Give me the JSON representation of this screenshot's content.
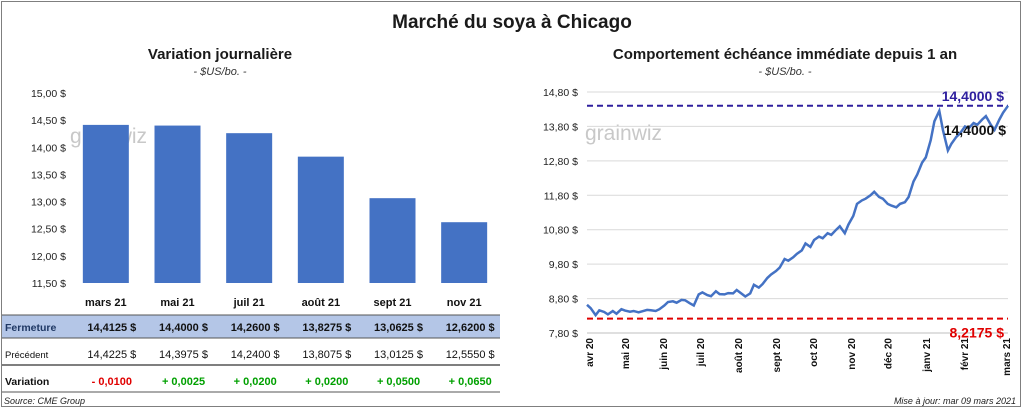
{
  "title": "Marché du soya à Chicago",
  "watermark": "grainwiz",
  "left": {
    "subtitle": "Variation journalière",
    "unit": "- $US/bo. -",
    "colors": {
      "bar": "#4472c4",
      "row_highlight": "#b4c6e7",
      "row_label": "#1f3864",
      "negative": "#e00000",
      "positive": "#00a000"
    }
  },
  "right": {
    "subtitle": "Comportement  échéance immédiate depuis 1 an",
    "unit": "- $US/bo. -",
    "max_label": "14,4000 $",
    "last_label": "14,4000 $",
    "min_label": "8,2175 $",
    "colors": {
      "line": "#4472c4",
      "max_line": "#2e1f9e",
      "min_line": "#e00000"
    }
  },
  "table": {
    "rows": [
      {
        "label": "Fermeture",
        "values": [
          "14,4125  $",
          "14,4000  $",
          "14,2600  $",
          "13,8275  $",
          "13,0625  $",
          "12,6200  $"
        ]
      },
      {
        "label": "Précédent",
        "values": [
          "14,4225  $",
          "14,3975  $",
          "14,2400  $",
          "13,8075  $",
          "13,0125  $",
          "12,5550  $"
        ]
      },
      {
        "label": "Variation",
        "values": [
          "- 0,0100",
          "+ 0,0025",
          "+ 0,0200",
          "+ 0,0200",
          "+ 0,0500",
          "+ 0,0650"
        ]
      }
    ]
  },
  "footer": {
    "source": "Source: CME Group",
    "updated": "Mise à jour: mar 09 mars 2021"
  },
  "chart_data": [
    {
      "type": "bar",
      "categories": [
        "mars 21",
        "mai 21",
        "juil 21",
        "août 21",
        "sept 21",
        "nov 21"
      ],
      "values": [
        14.4125,
        14.4,
        14.26,
        13.8275,
        13.0625,
        12.62
      ],
      "ylim": [
        11.5,
        15.0
      ],
      "yticks": [
        "11,50 $",
        "12,00 $",
        "12,50 $",
        "13,00 $",
        "13,50 $",
        "14,00 $",
        "14,50 $",
        "15,00 $"
      ],
      "grid": false
    },
    {
      "type": "line",
      "ylim": [
        7.8,
        14.8
      ],
      "yticks": [
        "7,80 $",
        "8,80 $",
        "9,80 $",
        "10,80 $",
        "11,80 $",
        "12,80 $",
        "13,80 $",
        "14,80 $"
      ],
      "xticks": [
        "avr 20",
        "mai 20",
        "juin 20",
        "juil 20",
        "août 20",
        "sept 20",
        "oct 20",
        "nov 20",
        "déc 20",
        "janv 21",
        "févr 21",
        "mars 21"
      ],
      "grid": true,
      "series": [
        {
          "x": [
            "2020-03-31",
            "2020-04-03",
            "2020-04-07",
            "2020-04-10",
            "2020-04-14",
            "2020-04-17",
            "2020-04-21",
            "2020-04-24",
            "2020-04-28",
            "2020-05-01",
            "2020-05-05",
            "2020-05-08",
            "2020-05-12",
            "2020-05-15",
            "2020-05-19",
            "2020-05-22",
            "2020-05-26",
            "2020-05-29",
            "2020-06-02",
            "2020-06-05",
            "2020-06-09",
            "2020-06-12",
            "2020-06-16",
            "2020-06-19",
            "2020-06-23",
            "2020-06-26",
            "2020-06-30",
            "2020-07-03",
            "2020-07-07",
            "2020-07-10",
            "2020-07-14",
            "2020-07-17",
            "2020-07-21",
            "2020-07-24",
            "2020-07-28",
            "2020-07-31",
            "2020-08-04",
            "2020-08-07",
            "2020-08-11",
            "2020-08-14",
            "2020-08-18",
            "2020-08-21",
            "2020-08-25",
            "2020-08-28",
            "2020-09-01",
            "2020-09-04",
            "2020-09-08",
            "2020-09-11",
            "2020-09-15",
            "2020-09-18",
            "2020-09-22",
            "2020-09-25",
            "2020-09-29",
            "2020-10-02",
            "2020-10-06",
            "2020-10-09",
            "2020-10-13",
            "2020-10-16",
            "2020-10-20",
            "2020-10-23",
            "2020-10-27",
            "2020-10-30",
            "2020-11-03",
            "2020-11-06",
            "2020-11-10",
            "2020-11-13",
            "2020-11-17",
            "2020-11-20",
            "2020-11-24",
            "2020-11-27",
            "2020-12-01",
            "2020-12-04",
            "2020-12-08",
            "2020-12-11",
            "2020-12-15",
            "2020-12-18",
            "2020-12-22",
            "2020-12-25",
            "2020-12-29",
            "2021-01-01",
            "2021-01-05",
            "2021-01-08",
            "2021-01-12",
            "2021-01-15",
            "2021-01-19",
            "2021-01-22",
            "2021-01-26",
            "2021-01-29",
            "2021-02-02",
            "2021-02-05",
            "2021-02-09",
            "2021-02-12",
            "2021-02-16",
            "2021-02-19",
            "2021-02-23",
            "2021-02-26",
            "2021-03-02",
            "2021-03-05",
            "2021-03-09"
          ],
          "y": [
            8.62,
            8.52,
            8.32,
            8.46,
            8.41,
            8.34,
            8.44,
            8.36,
            8.49,
            8.45,
            8.42,
            8.44,
            8.4,
            8.43,
            8.47,
            8.46,
            8.44,
            8.49,
            8.6,
            8.7,
            8.72,
            8.68,
            8.76,
            8.75,
            8.66,
            8.6,
            8.92,
            8.98,
            8.9,
            8.87,
            9.01,
            8.93,
            8.92,
            8.96,
            8.95,
            9.05,
            8.94,
            8.86,
            8.95,
            9.2,
            9.12,
            9.22,
            9.4,
            9.5,
            9.6,
            9.7,
            9.95,
            9.9,
            10.0,
            10.1,
            10.2,
            10.4,
            10.3,
            10.5,
            10.6,
            10.55,
            10.7,
            10.65,
            10.8,
            10.9,
            10.7,
            10.95,
            11.2,
            11.55,
            11.65,
            11.7,
            11.8,
            11.9,
            11.75,
            11.7,
            11.55,
            11.5,
            11.45,
            11.55,
            11.6,
            11.75,
            12.2,
            12.4,
            12.75,
            12.9,
            13.4,
            13.95,
            14.25,
            13.7,
            13.1,
            13.3,
            13.5,
            13.6,
            13.8,
            13.75,
            13.9,
            13.85,
            14.0,
            14.1,
            13.85,
            13.7,
            14.0,
            14.2,
            14.4
          ]
        }
      ]
    }
  ]
}
